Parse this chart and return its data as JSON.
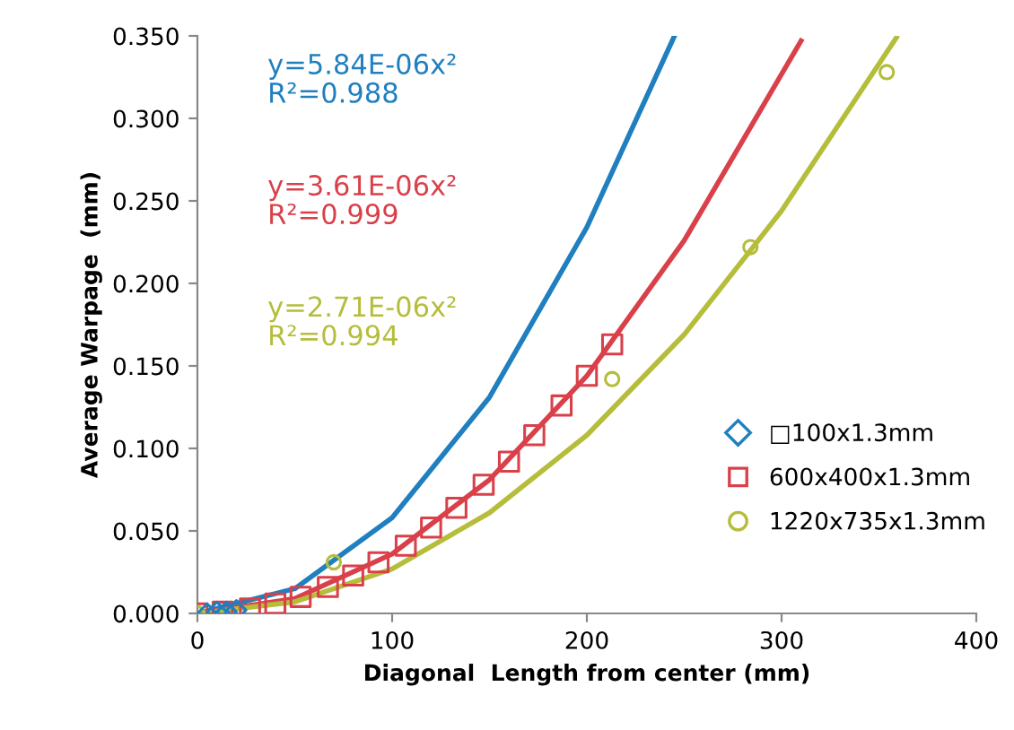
{
  "chart_data": {
    "type": "scatter",
    "xlabel": "Diagonal  Length from center (mm)",
    "ylabel": "Average Warpage  (mm)",
    "xlim": [
      0,
      400
    ],
    "xticks": [
      0,
      100,
      200,
      300,
      400
    ],
    "ylim": [
      0,
      0.35
    ],
    "yticks": [
      {
        "value": 0,
        "label": "0.000"
      },
      {
        "value": 0.05,
        "label": "0.050"
      },
      {
        "value": 0.1,
        "label": "0.100"
      },
      {
        "value": 0.15,
        "label": "0.150"
      },
      {
        "value": 0.2,
        "label": "0.200"
      },
      {
        "value": 0.25,
        "label": "0.250"
      },
      {
        "value": 0.3,
        "label": "0.300"
      },
      {
        "value": 0.35,
        "label": "0.350"
      }
    ],
    "grid": false,
    "legend": "bottom right",
    "series": [
      {
        "name": "□100x1.3mm",
        "marker": "diamond",
        "color": "#1f7fbf",
        "x": [
          5,
          10,
          15,
          20
        ],
        "values": [
          0,
          0.001,
          0.001,
          0.002
        ]
      },
      {
        "name": "600x400x1.3mm",
        "marker": "square",
        "color": "#d9404a",
        "x": [
          0,
          13,
          27,
          40,
          53,
          67,
          80,
          93,
          107,
          120,
          133,
          147,
          160,
          173,
          187,
          200,
          213
        ],
        "values": [
          0,
          0.001,
          0.003,
          0.006,
          0.01,
          0.016,
          0.023,
          0.031,
          0.041,
          0.052,
          0.064,
          0.078,
          0.092,
          0.108,
          0.126,
          0.144,
          0.163
        ]
      },
      {
        "name": "1220x735x1.3mm",
        "marker": "circle",
        "color": "#b5bd3a",
        "x": [
          0,
          70,
          213,
          284,
          354
        ],
        "values": [
          0,
          0.031,
          0.142,
          0.222,
          0.328
        ]
      },
      {
        "type": "line",
        "marker": "none",
        "color": "#1f7fbf",
        "x": [
          0,
          50,
          100,
          150,
          200,
          245
        ],
        "values": [
          0,
          0.015,
          0.058,
          0.131,
          0.234,
          0.35
        ]
      },
      {
        "type": "line",
        "marker": "none",
        "color": "#d9404a",
        "x": [
          0,
          50,
          100,
          150,
          200,
          250,
          310
        ],
        "values": [
          0,
          0.009,
          0.036,
          0.081,
          0.144,
          0.226,
          0.347
        ]
      },
      {
        "type": "line",
        "marker": "none",
        "color": "#b5bd3a",
        "x": [
          0,
          50,
          100,
          150,
          200,
          250,
          300,
          359
        ],
        "values": [
          0,
          0.007,
          0.027,
          0.061,
          0.108,
          0.169,
          0.244,
          0.349
        ]
      }
    ],
    "annotations": [
      "y=5.84E-06x²\nR²=0.988",
      "y=3.61E-06x²\nR²=0.999",
      "y=2.71E-06x²\nR²=0.994"
    ]
  }
}
